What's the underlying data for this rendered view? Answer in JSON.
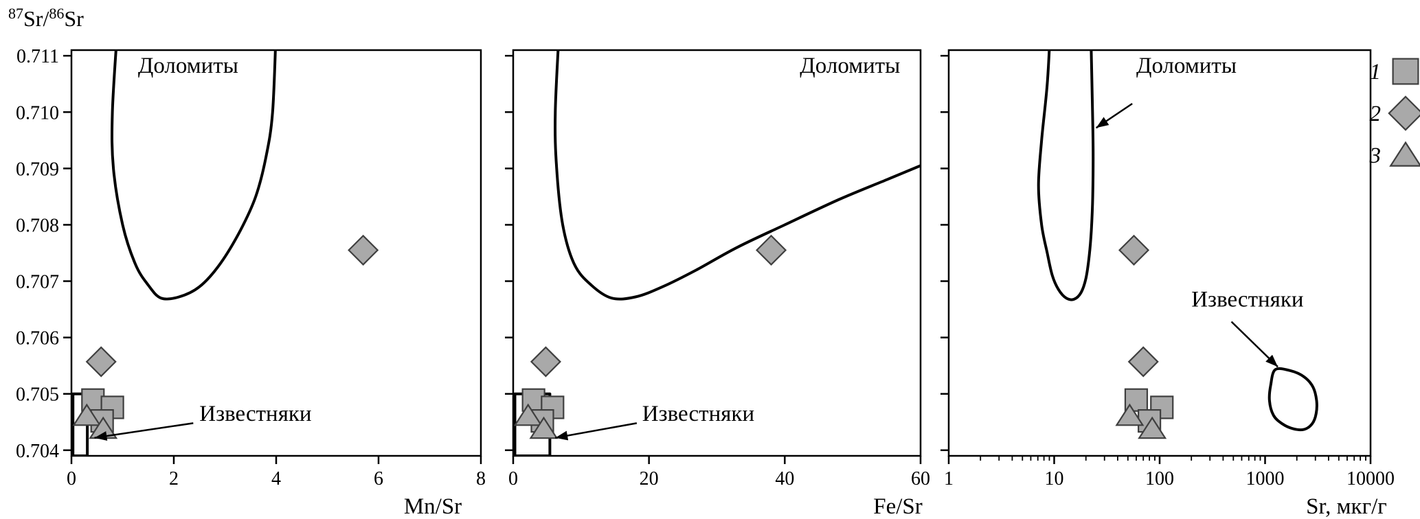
{
  "figure": {
    "ylabel_segments": [
      {
        "text": "87",
        "sup": true
      },
      {
        "text": "Sr/",
        "sup": false
      },
      {
        "text": "86",
        "sup": true
      },
      {
        "text": "Sr",
        "sup": false
      }
    ],
    "colors": {
      "background": "#ffffff",
      "line": "#000000",
      "text": "#000000",
      "marker_fill": "#a9a9a9",
      "marker_stroke": "#3f3f3f"
    }
  },
  "legend": {
    "items": [
      {
        "label": "1",
        "marker": "square"
      },
      {
        "label": "2",
        "marker": "diamond"
      },
      {
        "label": "3",
        "marker": "triangle"
      }
    ]
  },
  "chart_data": [
    {
      "id": "mn-sr",
      "type": "scatter",
      "xlabel": "Mn/Sr",
      "ylabel": "87Sr/86Sr",
      "xscale": "linear",
      "xlim": [
        0,
        8
      ],
      "xticks": [
        {
          "v": 0,
          "label": "0"
        },
        {
          "v": 2,
          "label": "2"
        },
        {
          "v": 4,
          "label": "4"
        },
        {
          "v": 6,
          "label": "6"
        },
        {
          "v": 8,
          "label": "8"
        }
      ],
      "ylim": [
        0.7039,
        0.7111
      ],
      "yticks": [
        0.704,
        0.705,
        0.706,
        0.707,
        0.708,
        0.709,
        0.71,
        0.711
      ],
      "ytick_labels": true,
      "series": [
        {
          "name": "1",
          "marker": "square",
          "points": [
            [
              0.42,
              0.70489
            ],
            [
              0.8,
              0.70476
            ],
            [
              0.6,
              0.70452
            ]
          ]
        },
        {
          "name": "2",
          "marker": "diamond",
          "points": [
            [
              0.58,
              0.70557
            ],
            [
              5.7,
              0.70755
            ]
          ]
        },
        {
          "name": "3",
          "marker": "triangle",
          "points": [
            [
              0.3,
              0.70461
            ],
            [
              0.62,
              0.70438
            ]
          ]
        }
      ],
      "fields": [
        {
          "id": "dolomites-field",
          "name": "Доломиты",
          "smooth": true,
          "closed": false,
          "points": [
            [
              0.9,
              0.7115
            ],
            [
              0.8,
              0.71
            ],
            [
              0.82,
              0.709
            ],
            [
              1.0,
              0.708
            ],
            [
              1.25,
              0.7073
            ],
            [
              1.5,
              0.70693
            ],
            [
              1.75,
              0.7067
            ],
            [
              2.1,
              0.70672
            ],
            [
              2.5,
              0.7069
            ],
            [
              2.9,
              0.7073
            ],
            [
              3.3,
              0.7079
            ],
            [
              3.6,
              0.7085
            ],
            [
              3.8,
              0.7092
            ],
            [
              3.93,
              0.71
            ],
            [
              4.0,
              0.7115
            ]
          ]
        },
        {
          "id": "limestones-field",
          "name": "Известняки",
          "smooth": false,
          "closed": true,
          "points": [
            [
              0.03,
              0.7039
            ],
            [
              0.03,
              0.705
            ],
            [
              0.31,
              0.705
            ],
            [
              0.31,
              0.7039
            ]
          ]
        }
      ],
      "annotations": [
        {
          "id": "dolomites-label",
          "text": "Доломиты",
          "x": 1.3,
          "y": 0.7107,
          "anchor": "start"
        },
        {
          "id": "limestones-label",
          "text": "Известняки",
          "x": 2.5,
          "y": 0.70452,
          "anchor": "start",
          "arrow": {
            "from": [
              2.38,
              0.70448
            ],
            "to": [
              0.45,
              0.70422
            ]
          }
        }
      ]
    },
    {
      "id": "fe-sr",
      "type": "scatter",
      "xlabel": "Fe/Sr",
      "ylabel": "87Sr/86Sr",
      "xscale": "linear",
      "xlim": [
        0,
        60
      ],
      "xticks": [
        {
          "v": 0,
          "label": "0"
        },
        {
          "v": 20,
          "label": "20"
        },
        {
          "v": 40,
          "label": "40"
        },
        {
          "v": 60,
          "label": "60"
        }
      ],
      "ylim": [
        0.7039,
        0.7111
      ],
      "yticks": [
        0.704,
        0.705,
        0.706,
        0.707,
        0.708,
        0.709,
        0.71,
        0.711
      ],
      "ytick_labels": false,
      "series": [
        {
          "name": "1",
          "marker": "square",
          "points": [
            [
              3.0,
              0.70489
            ],
            [
              5.8,
              0.70476
            ],
            [
              4.3,
              0.70452
            ]
          ]
        },
        {
          "name": "2",
          "marker": "diamond",
          "points": [
            [
              4.8,
              0.70557
            ],
            [
              38,
              0.70755
            ]
          ]
        },
        {
          "name": "3",
          "marker": "triangle",
          "points": [
            [
              2.2,
              0.70461
            ],
            [
              4.5,
              0.70438
            ]
          ]
        }
      ],
      "fields": [
        {
          "id": "dolomites-field",
          "name": "Доломиты",
          "smooth": true,
          "closed": false,
          "points": [
            [
              6.8,
              0.7115
            ],
            [
              6.2,
              0.71
            ],
            [
              6.4,
              0.709
            ],
            [
              7.3,
              0.708
            ],
            [
              9,
              0.7073
            ],
            [
              11.5,
              0.70693
            ],
            [
              14.5,
              0.7067
            ],
            [
              18,
              0.70672
            ],
            [
              22,
              0.7069
            ],
            [
              27,
              0.7072
            ],
            [
              33,
              0.7076
            ],
            [
              40,
              0.708
            ],
            [
              48,
              0.70845
            ],
            [
              55,
              0.7088
            ],
            [
              60,
              0.70905
            ]
          ]
        },
        {
          "id": "limestones-field",
          "name": "Известняки",
          "smooth": false,
          "closed": true,
          "points": [
            [
              0.25,
              0.7039
            ],
            [
              0.25,
              0.705
            ],
            [
              5.4,
              0.705
            ],
            [
              5.4,
              0.7039
            ]
          ]
        }
      ],
      "annotations": [
        {
          "id": "dolomites-label",
          "text": "Доломиты",
          "x": 57,
          "y": 0.7107,
          "anchor": "end"
        },
        {
          "id": "limestones-label",
          "text": "Известняки",
          "x": 19,
          "y": 0.70452,
          "anchor": "start",
          "arrow": {
            "from": [
              18.2,
              0.70448
            ],
            "to": [
              6.2,
              0.70422
            ]
          }
        }
      ]
    },
    {
      "id": "sr",
      "type": "scatter",
      "xlabel": "Sr, мкг/г",
      "ylabel": "87Sr/86Sr",
      "xscale": "log",
      "xlim": [
        1,
        10000
      ],
      "xticks": [
        {
          "v": 1,
          "label": "1"
        },
        {
          "v": 10,
          "label": "10"
        },
        {
          "v": 100,
          "label": "100"
        },
        {
          "v": 1000,
          "label": "1000"
        },
        {
          "v": 10000,
          "label": "10000"
        }
      ],
      "ylim": [
        0.7039,
        0.7111
      ],
      "yticks": [
        0.704,
        0.705,
        0.706,
        0.707,
        0.708,
        0.709,
        0.71,
        0.711
      ],
      "ytick_labels": false,
      "series": [
        {
          "name": "1",
          "marker": "square",
          "points": [
            [
              60,
              0.70489
            ],
            [
              105,
              0.70476
            ],
            [
              80,
              0.70452
            ]
          ]
        },
        {
          "name": "2",
          "marker": "diamond",
          "points": [
            [
              57,
              0.70755
            ],
            [
              70,
              0.70557
            ]
          ]
        },
        {
          "name": "3",
          "marker": "triangle",
          "points": [
            [
              52,
              0.70461
            ],
            [
              85,
              0.70438
            ]
          ]
        }
      ],
      "fields": [
        {
          "id": "dolomites-field",
          "name": "Доломиты",
          "smooth": true,
          "closed": false,
          "points": [
            [
              9.2,
              0.7115
            ],
            [
              8.6,
              0.7105
            ],
            [
              7.6,
              0.7095
            ],
            [
              7.1,
              0.7087
            ],
            [
              7.6,
              0.708
            ],
            [
              8.6,
              0.7075
            ],
            [
              9.6,
              0.7071
            ],
            [
              11,
              0.70685
            ],
            [
              13,
              0.7067
            ],
            [
              15.5,
              0.70668
            ],
            [
              18,
              0.7068
            ],
            [
              20,
              0.70705
            ],
            [
              21.5,
              0.70745
            ],
            [
              22.5,
              0.7079
            ],
            [
              23.2,
              0.7085
            ],
            [
              23.4,
              0.7093
            ],
            [
              23,
              0.7102
            ],
            [
              22.2,
              0.7115
            ]
          ]
        },
        {
          "id": "limestones-field",
          "name": "Известняки",
          "smooth": true,
          "closed": true,
          "points": [
            [
              1250,
              0.70543
            ],
            [
              1130,
              0.70515
            ],
            [
              1100,
              0.70488
            ],
            [
              1200,
              0.70462
            ],
            [
              1450,
              0.70447
            ],
            [
              1850,
              0.70438
            ],
            [
              2350,
              0.70437
            ],
            [
              2800,
              0.70447
            ],
            [
              3050,
              0.70465
            ],
            [
              3080,
              0.70488
            ],
            [
              2850,
              0.70512
            ],
            [
              2350,
              0.7053
            ],
            [
              1750,
              0.70541
            ]
          ]
        }
      ],
      "annotations": [
        {
          "id": "dolomites-label",
          "text": "Доломиты",
          "x": 60,
          "y": 0.7107,
          "anchor": "start",
          "arrow": {
            "from": [
              55,
              0.71015
            ],
            "to": [
              25,
              0.70972
            ]
          }
        },
        {
          "id": "limestones-label",
          "text": "Известняки",
          "x": 200,
          "y": 0.70655,
          "anchor": "start",
          "arrow": {
            "from": [
              480,
              0.70628
            ],
            "to": [
              1320,
              0.70548
            ]
          }
        }
      ]
    }
  ]
}
